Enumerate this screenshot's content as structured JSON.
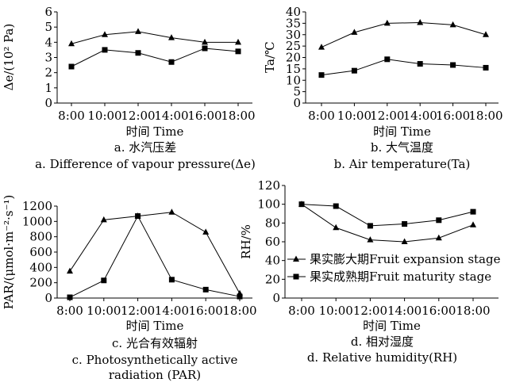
{
  "chart_data": [
    {
      "type": "line",
      "caption_cn": "a. 水汽压差",
      "caption_en": "a. Difference of vapour pressure(Δe)",
      "xlabel": "时间 Time",
      "ylabel": "Δe/(10² Pa)",
      "categories": [
        "8:00",
        "10:00",
        "12:00",
        "14:00",
        "16:00",
        "18:00"
      ],
      "ylim": [
        0,
        6
      ],
      "yticks": [
        0,
        1,
        2,
        3,
        4,
        5,
        6
      ],
      "series": [
        {
          "marker": "triangle",
          "values": [
            3.9,
            4.5,
            4.7,
            4.3,
            4.0,
            4.0
          ]
        },
        {
          "marker": "square",
          "values": [
            2.4,
            3.5,
            3.3,
            2.7,
            3.6,
            3.4
          ]
        }
      ]
    },
    {
      "type": "line",
      "caption_cn": "b. 大气温度",
      "caption_en": "b. Air temperature(Ta)",
      "xlabel": "时间 Time",
      "ylabel": "Ta/℃",
      "categories": [
        "8:00",
        "10:00",
        "12:00",
        "14:00",
        "16:00",
        "18:00"
      ],
      "ylim": [
        0,
        40
      ],
      "yticks": [
        0,
        5,
        10,
        15,
        20,
        25,
        30,
        35,
        40
      ],
      "series": [
        {
          "marker": "triangle",
          "values": [
            24.5,
            31,
            35,
            35.3,
            34.3,
            30
          ]
        },
        {
          "marker": "square",
          "values": [
            12.3,
            14.2,
            19.2,
            17.2,
            16.7,
            15.5
          ]
        }
      ]
    },
    {
      "type": "line",
      "caption_cn": "c. 光合有效辐射",
      "caption_en": "c. Photosynthetically active radiation (PAR)",
      "xlabel": "时间 Time",
      "ylabel": "PAR/(μmol·m⁻²·s⁻¹)",
      "categories": [
        "8:00",
        "10:00",
        "12:00",
        "14:00",
        "16:00",
        "18:00"
      ],
      "ylim": [
        0,
        1200
      ],
      "yticks": [
        0,
        200,
        400,
        600,
        800,
        1000,
        1200
      ],
      "series": [
        {
          "marker": "triangle",
          "values": [
            350,
            1020,
            1070,
            1120,
            860,
            60
          ]
        },
        {
          "marker": "square",
          "values": [
            10,
            230,
            1070,
            240,
            110,
            20
          ]
        }
      ]
    },
    {
      "type": "line",
      "caption_cn": "d. 相对湿度",
      "caption_en": "d. Relative humidity(RH)",
      "xlabel": "时间 Time",
      "ylabel": "RH/%",
      "categories": [
        "8:00",
        "10:00",
        "12:00",
        "14:00",
        "16:00",
        "18:00"
      ],
      "ylim": [
        0,
        120
      ],
      "yticks": [
        0,
        20,
        40,
        60,
        80,
        100,
        120
      ],
      "legend": [
        "果实膨大期Fruit expansion stage",
        "果实成熟期Fruit maturity stage"
      ],
      "series": [
        {
          "name": "果实膨大期Fruit expansion stage",
          "marker": "triangle",
          "values": [
            100,
            75,
            62,
            60,
            64,
            78
          ]
        },
        {
          "name": "果实成熟期Fruit maturity stage",
          "marker": "square",
          "values": [
            100,
            98,
            77,
            79,
            83,
            92
          ]
        }
      ]
    }
  ]
}
